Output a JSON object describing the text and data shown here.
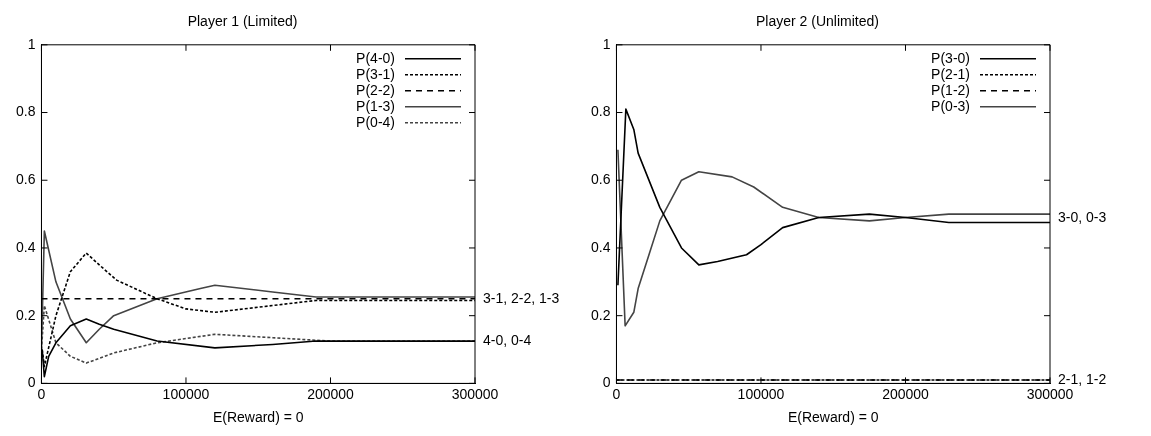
{
  "chart_data": [
    {
      "type": "line",
      "title": "Player 1 (Limited)",
      "xlabel": "E(Reward) = 0",
      "xlim": [
        0,
        300000
      ],
      "xticks": [
        0,
        100000,
        200000,
        300000
      ],
      "ylim": [
        0,
        1
      ],
      "yticks": [
        0,
        0.2,
        0.4,
        0.6,
        0.8,
        1
      ],
      "grid": false,
      "legend": "top right",
      "marker": "none",
      "annotations": [
        "3-1, 2-2, 1-3",
        "4-0, 0-4"
      ],
      "series": [
        {
          "name": "P(4-0)",
          "color": "#000000",
          "line_style": "solid",
          "x": [
            500,
            2000,
            5000,
            10000,
            20000,
            31000,
            40000,
            50000,
            80000,
            120000,
            160000,
            190000,
            300000
          ],
          "values": [
            0.1,
            0.02,
            0.08,
            0.12,
            0.17,
            0.19,
            0.175,
            0.16,
            0.125,
            0.105,
            0.115,
            0.125,
            0.125
          ]
        },
        {
          "name": "P(3-1)",
          "color": "#000000",
          "line_style": "dotted",
          "x": [
            500,
            2000,
            10000,
            20000,
            31000,
            40000,
            52000,
            80000,
            100000,
            120000,
            150000,
            190000,
            300000
          ],
          "values": [
            0.1,
            0.05,
            0.2,
            0.33,
            0.385,
            0.35,
            0.305,
            0.25,
            0.22,
            0.21,
            0.225,
            0.245,
            0.245
          ]
        },
        {
          "name": "P(2-2)",
          "color": "#000000",
          "line_style": "dashed",
          "x": [
            0,
            300000
          ],
          "values": [
            0.25,
            0.25
          ]
        },
        {
          "name": "P(1-3)",
          "color": "#444444",
          "line_style": "solid",
          "x": [
            0,
            2000,
            10000,
            20000,
            31000,
            40000,
            50000,
            80000,
            110000,
            120000,
            160000,
            190000,
            300000
          ],
          "values": [
            0.1,
            0.45,
            0.3,
            0.19,
            0.12,
            0.16,
            0.2,
            0.25,
            0.28,
            0.29,
            0.27,
            0.255,
            0.255
          ]
        },
        {
          "name": "P(0-4)",
          "color": "#444444",
          "line_style": "dotted",
          "x": [
            0,
            2000,
            10000,
            20000,
            31000,
            50000,
            80000,
            120000,
            160000,
            200000,
            300000
          ],
          "values": [
            0.1,
            0.23,
            0.12,
            0.08,
            0.06,
            0.09,
            0.12,
            0.145,
            0.135,
            0.125,
            0.125
          ]
        }
      ]
    },
    {
      "type": "line",
      "title": "Player 2 (Unlimited)",
      "xlabel": "E(Reward) = 0",
      "xlim": [
        0,
        300000
      ],
      "xticks": [
        0,
        100000,
        200000,
        300000
      ],
      "ylim": [
        0,
        1
      ],
      "yticks": [
        0,
        0.2,
        0.4,
        0.6,
        0.8,
        1
      ],
      "grid": false,
      "legend": "top right",
      "marker": "none",
      "annotations": [
        "3-0, 0-3",
        "2-1, 1-2"
      ],
      "series": [
        {
          "name": "P(3-0)",
          "color": "#000000",
          "line_style": "solid",
          "x": [
            1000,
            6500,
            12000,
            15000,
            30000,
            45000,
            57000,
            70000,
            90000,
            100000,
            115000,
            140000,
            175000,
            200000,
            230000,
            300000
          ],
          "values": [
            0.29,
            0.81,
            0.75,
            0.68,
            0.52,
            0.4,
            0.35,
            0.36,
            0.38,
            0.41,
            0.46,
            0.49,
            0.5,
            0.49,
            0.475,
            0.475
          ]
        },
        {
          "name": "P(2-1)",
          "color": "#000000",
          "line_style": "dotted",
          "x": [
            0,
            300000
          ],
          "values": [
            0.01,
            0.01
          ]
        },
        {
          "name": "P(1-2)",
          "color": "#000000",
          "line_style": "dashed",
          "x": [
            0,
            300000
          ],
          "values": [
            0.01,
            0.01
          ]
        },
        {
          "name": "P(0-3)",
          "color": "#444444",
          "line_style": "solid",
          "x": [
            1000,
            6000,
            12000,
            15000,
            30000,
            45000,
            57000,
            80000,
            95000,
            115000,
            140000,
            175000,
            200000,
            230000,
            300000
          ],
          "values": [
            0.69,
            0.17,
            0.21,
            0.28,
            0.48,
            0.6,
            0.625,
            0.61,
            0.58,
            0.52,
            0.49,
            0.48,
            0.49,
            0.5,
            0.5
          ]
        }
      ]
    }
  ]
}
